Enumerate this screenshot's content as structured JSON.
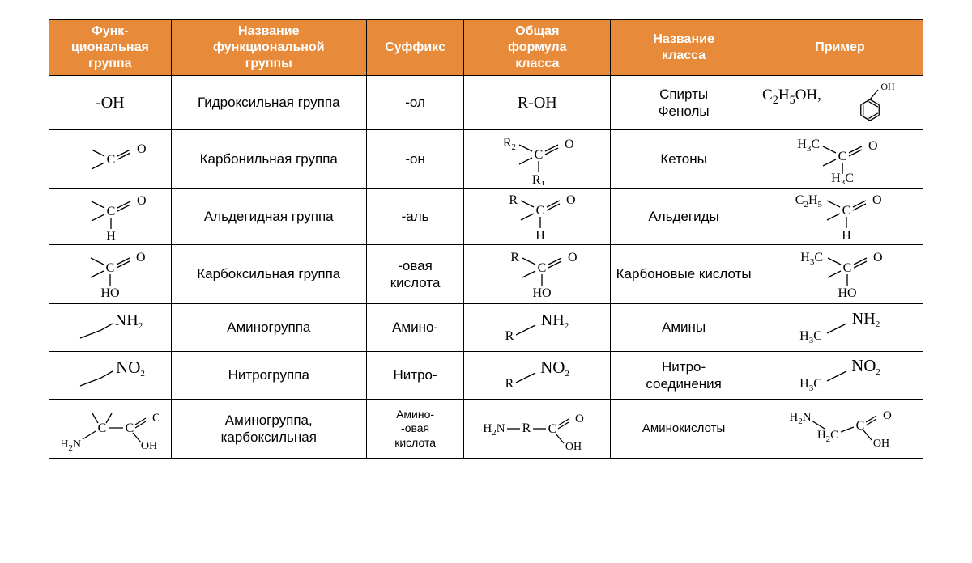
{
  "table": {
    "header_bg": "#e78a3a",
    "header_fg": "#ffffff",
    "border_color": "#000000",
    "font_family_text": "Segoe UI, Arial, sans-serif",
    "font_family_chem": "Times New Roman, serif",
    "columns": [
      {
        "key": "group_structure",
        "label": "Функ-\nциональная\nгруппа",
        "width_pct": 12.5
      },
      {
        "key": "group_name",
        "label": "Название\nфункциональной\nгруппы",
        "width_pct": 20
      },
      {
        "key": "suffix",
        "label": "Суффикс",
        "width_pct": 10
      },
      {
        "key": "general_formula",
        "label": "Общая\nформула\nкласса",
        "width_pct": 15
      },
      {
        "key": "class_name",
        "label": "Название\nкласса",
        "width_pct": 15
      },
      {
        "key": "example",
        "label": "Пример",
        "width_pct": 17
      }
    ],
    "rows": [
      {
        "group_structure_text": "-OH",
        "group_name": "Гидроксильная группа",
        "suffix": "-ол",
        "general_formula_text": "R-OH",
        "general_formula_align": "left",
        "class_name": "Спирты\nФенолы",
        "example_text": "C₂H₅OH,",
        "example_svg": "phenol"
      },
      {
        "group_structure_svg": "carbonyl_frag",
        "group_name": "Карбонильная группа",
        "suffix": "-он",
        "general_formula_svg": "ketone_general",
        "class_name": "Кетоны",
        "example_svg": "acetone"
      },
      {
        "group_structure_svg": "aldehyde_frag",
        "group_name": "Альдегидная группа",
        "suffix": "-аль",
        "general_formula_svg": "aldehyde_general",
        "class_name": "Альдегиды",
        "example_svg": "propanal"
      },
      {
        "group_structure_svg": "carboxyl_frag",
        "group_name": "Карбоксильная группа",
        "suffix": "-овая кислота",
        "general_formula_svg": "carboxylic_general",
        "class_name": "Карбоновые кислоты",
        "example_svg": "acetic_acid"
      },
      {
        "group_structure_svg": "amino_frag",
        "group_name": "Аминогруппа",
        "suffix": "Амино-",
        "general_formula_svg": "amine_general",
        "class_name": "Амины",
        "example_svg": "methylamine"
      },
      {
        "group_structure_svg": "nitro_frag",
        "group_name": "Нитрогруппа",
        "suffix": "Нитро-",
        "general_formula_svg": "nitro_general",
        "class_name": "Нитро-\nсоединения",
        "example_svg": "nitromethane"
      },
      {
        "group_structure_svg": "aminoacid_frag",
        "group_name": "Аминогруппа, карбоксильная",
        "suffix": "Амино-\n-овая\nкислота",
        "suffix_small": true,
        "general_formula_svg": "aminoacid_general",
        "class_name": "Аминокислоты",
        "class_name_small": true,
        "example_svg": "glycine"
      }
    ]
  },
  "svg_defs": {
    "stroke": "#000000",
    "stroke_width": 1.3,
    "font": "Times New Roman",
    "text_size": 16,
    "sub_size": 11
  }
}
